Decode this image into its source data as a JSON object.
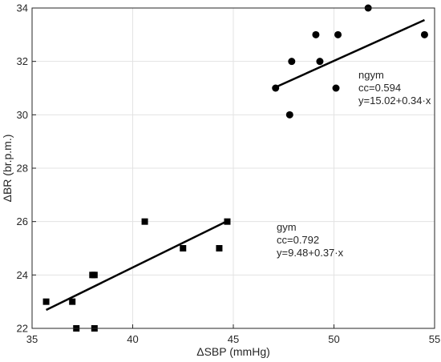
{
  "chart_data": {
    "type": "scatter",
    "xlabel": "ΔSBP (mmHg)",
    "ylabel": "ΔBR (br.p.m.)",
    "xlim": [
      35,
      55
    ],
    "ylim": [
      22,
      34
    ],
    "xticks": [
      35,
      40,
      45,
      50,
      55
    ],
    "yticks": [
      22,
      24,
      26,
      28,
      30,
      32,
      34
    ],
    "grid": true,
    "series": [
      {
        "name": "gym",
        "marker": "square",
        "points": [
          [
            35.7,
            23.0
          ],
          [
            37.0,
            23.0
          ],
          [
            37.2,
            22.0
          ],
          [
            38.0,
            24.0
          ],
          [
            38.1,
            24.0
          ],
          [
            38.1,
            22.0
          ],
          [
            40.6,
            26.0
          ],
          [
            42.5,
            25.0
          ],
          [
            44.3,
            25.0
          ],
          [
            44.7,
            26.0
          ]
        ],
        "fit": {
          "x": [
            35.7,
            44.7
          ],
          "intercept": 9.48,
          "slope": 0.37
        },
        "annotation": {
          "lines": [
            "gym",
            "cc=0.792",
            "y=9.48+0.37·x"
          ]
        }
      },
      {
        "name": "ngym",
        "marker": "circle",
        "points": [
          [
            47.1,
            31.0
          ],
          [
            47.8,
            30.0
          ],
          [
            47.9,
            32.0
          ],
          [
            49.1,
            33.0
          ],
          [
            49.3,
            32.0
          ],
          [
            50.1,
            31.0
          ],
          [
            50.2,
            33.0
          ],
          [
            51.7,
            34.0
          ],
          [
            54.5,
            33.0
          ]
        ],
        "fit": {
          "x": [
            47.1,
            54.5
          ],
          "intercept": 15.02,
          "slope": 0.34
        },
        "annotation": {
          "lines": [
            "ngym",
            "cc=0.594",
            "y=15.02+0.34·x"
          ]
        }
      }
    ],
    "colors": {
      "marker": "#000000",
      "fit": "#000000",
      "axis": "#262626",
      "grid": "#e3e3e3"
    }
  }
}
